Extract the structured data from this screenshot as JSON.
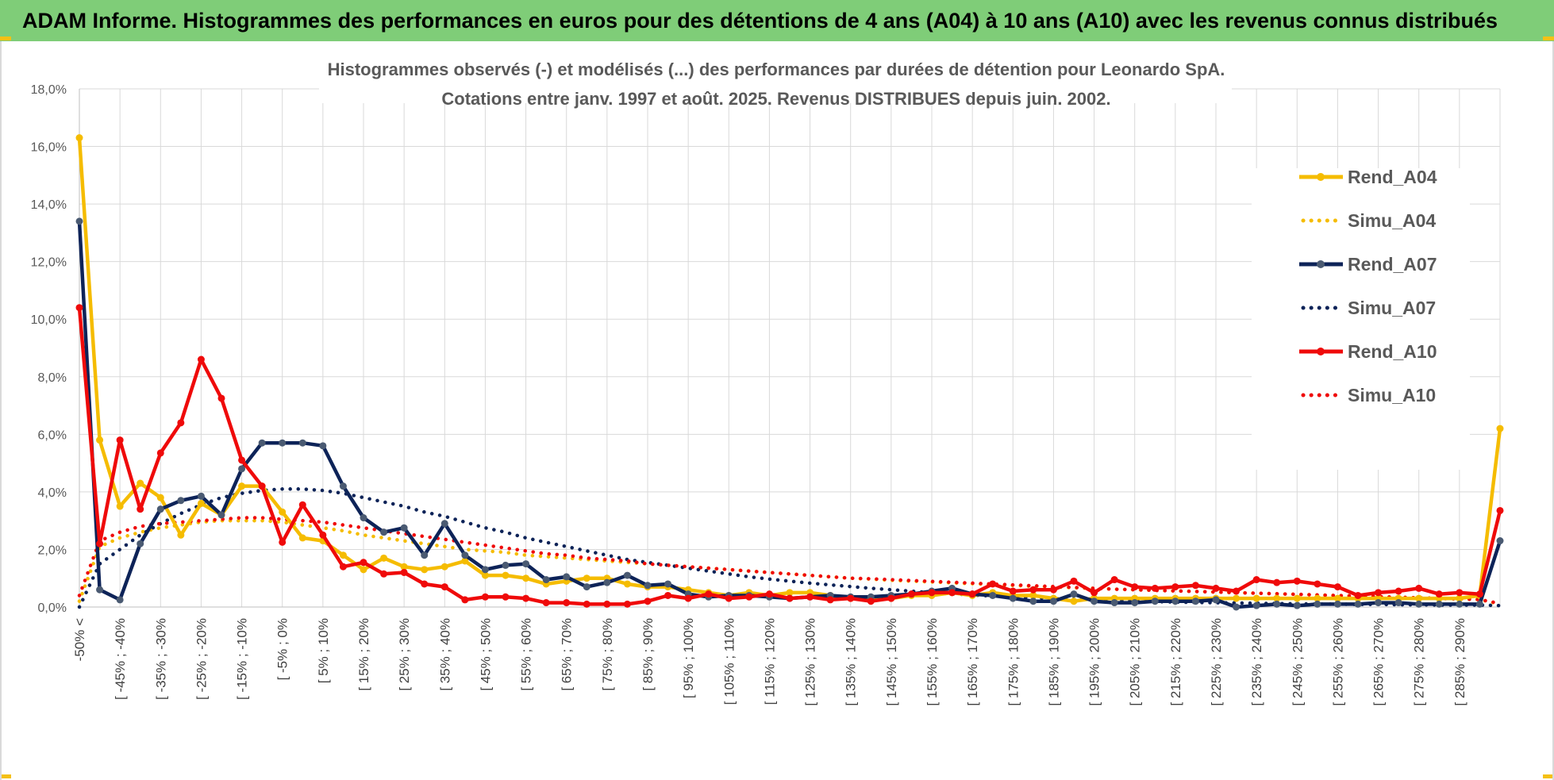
{
  "banner": {
    "title": "ADAM Informe. Histogrammes des performances en euros pour des détentions de 4 ans (A04) à 10 ans (A10) avec les revenus connus distribués"
  },
  "colors": {
    "banner_bg": "#7fcd78",
    "accent": "#f4c015",
    "gridline": "#d9d9d9"
  },
  "chart_data": {
    "type": "line",
    "title_line1": "Histogrammes observés (-) et modélisés (...) des performances par durées de détention pour Leonardo SpA.",
    "title_line2": "Cotations entre janv. 1997 et août. 2025. Revenus DISTRIBUES depuis juin. 2002.",
    "xlabel": "",
    "ylabel": "",
    "ylim": [
      0,
      18
    ],
    "y_ticks": [
      "0,0%",
      "2,0%",
      "4,0%",
      "6,0%",
      "8,0%",
      "10,0%",
      "12,0%",
      "14,0%",
      "16,0%",
      "18,0%"
    ],
    "y_tick_values": [
      0,
      2,
      4,
      6,
      8,
      10,
      12,
      14,
      16,
      18
    ],
    "grid": true,
    "legend_position": "right",
    "categories": [
      "-50% <",
      "[ -50% ; -45%",
      "[ -45% ; -40%",
      "[ -40% ; -35%",
      "[ -35% ; -30%",
      "[ -30% ; -25%",
      "[ -25% ; -20%",
      "[ -20% ; -15%",
      "[ -15% ; -10%",
      "[ -10% ; -5%",
      "[ -5% ; 0%",
      "[ 0% ; 5%",
      "[ 5% ; 10%",
      "[ 10% ; 15%",
      "[ 15% ; 20%",
      "[ 20% ; 25%",
      "[ 25% ; 30%",
      "[ 30% ; 35%",
      "[ 35% ; 40%",
      "[ 40% ; 45%",
      "[ 45% ; 50%",
      "[ 50% ; 55%",
      "[ 55% ; 60%",
      "[ 60% ; 65%",
      "[ 65% ; 70%",
      "[ 70% ; 75%",
      "[ 75% ; 80%",
      "[ 80% ; 85%",
      "[ 85% ; 90%",
      "[ 90% ; 95%",
      "[ 95% ; 100%",
      "[ 100% ; 105%",
      "[ 105% ; 110%",
      "[ 110% ; 115%",
      "[ 115% ; 120%",
      "[ 120% ; 125%",
      "[ 125% ; 130%",
      "[ 130% ; 135%",
      "[ 135% ; 140%",
      "[ 140% ; 145%",
      "[ 145% ; 150%",
      "[ 150% ; 155%",
      "[ 155% ; 160%",
      "[ 160% ; 165%",
      "[ 165% ; 170%",
      "[ 170% ; 175%",
      "[ 175% ; 180%",
      "[ 180% ; 185%",
      "[ 185% ; 190%",
      "[ 190% ; 195%",
      "[ 195% ; 200%",
      "[ 200% ; 205%",
      "[ 205% ; 210%",
      "[ 210% ; 215%",
      "[ 215% ; 220%",
      "[ 220% ; 225%",
      "[ 225% ; 230%",
      "[ 230% ; 235%",
      "[ 235% ; 240%",
      "[ 240% ; 245%",
      "[ 245% ; 250%",
      "[ 250% ; 255%",
      "[ 255% ; 260%",
      "[ 260% ; 265%",
      "[ 265% ; 270%",
      "[ 270% ; 275%",
      "[ 275% ; 280%",
      "[ 280% ; 285%",
      "[ 285% ; 290%",
      "[ 290% ; 295%",
      "[ 295% ; 300%"
    ],
    "x_labels": [
      "-50% <",
      "[ -45% ; -40%",
      "[ -35% ; -30%",
      "[ -25% ; -20%",
      "[ -15% ; -10%",
      "[ -5% ; 0%",
      "[ 5% ; 10%",
      "[ 15% ; 20%",
      "[ 25% ; 30%",
      "[ 35% ; 40%",
      "[ 45% ; 50%",
      "[ 55% ; 60%",
      "[ 65% ; 70%",
      "[ 75% ; 80%",
      "[ 85% ; 90%",
      "[ 95% ; 100%",
      "[ 105% ; 110%",
      "[ 115% ; 120%",
      "[ 125% ; 130%",
      "[ 135% ; 140%",
      "[ 145% ; 150%",
      "[ 155% ; 160%",
      "[ 165% ; 170%",
      "[ 175% ; 180%",
      "[ 185% ; 190%",
      "[ 195% ; 200%",
      "[ 205% ; 210%",
      "[ 215% ; 220%",
      "[ 225% ; 230%",
      "[ 235% ; 240%",
      "[ 245% ; 250%",
      "[ 255% ; 260%",
      "[ 265% ; 270%",
      "[ 275% ; 280%",
      "[ 285% ; 290%"
    ],
    "series": [
      {
        "name": "Rend_A04",
        "color": "#f5bc00",
        "style": "solid",
        "values": [
          16.3,
          5.8,
          3.5,
          4.3,
          3.8,
          2.5,
          3.6,
          3.2,
          4.2,
          4.2,
          3.3,
          2.4,
          2.3,
          1.8,
          1.3,
          1.7,
          1.4,
          1.3,
          1.4,
          1.6,
          1.1,
          1.1,
          1.0,
          0.8,
          0.9,
          1.0,
          1.0,
          0.8,
          0.7,
          0.7,
          0.6,
          0.5,
          0.4,
          0.5,
          0.4,
          0.5,
          0.5,
          0.4,
          0.3,
          0.3,
          0.3,
          0.4,
          0.4,
          0.5,
          0.4,
          0.5,
          0.4,
          0.4,
          0.3,
          0.2,
          0.3,
          0.3,
          0.3,
          0.3,
          0.3,
          0.3,
          0.3,
          0.3,
          0.3,
          0.3,
          0.3,
          0.3,
          0.3,
          0.3,
          0.3,
          0.3,
          0.3,
          0.3,
          0.3,
          0.4,
          6.2
        ]
      },
      {
        "name": "Simu_A04",
        "color": "#f5bc00",
        "style": "dotted",
        "values": [
          0.2,
          2.1,
          2.4,
          2.6,
          2.75,
          2.85,
          2.95,
          3.0,
          3.0,
          3.0,
          2.95,
          2.85,
          2.75,
          2.65,
          2.5,
          2.4,
          2.3,
          2.2,
          2.1,
          2.0,
          1.95,
          1.9,
          1.8,
          1.75,
          1.7,
          1.65,
          1.6,
          1.55,
          1.5,
          1.45,
          1.4,
          1.35,
          1.3,
          1.25,
          1.2,
          1.15,
          1.1,
          1.05,
          1.0,
          0.97,
          0.93,
          0.9,
          0.87,
          0.84,
          0.81,
          0.78,
          0.75,
          0.72,
          0.7,
          0.67,
          0.65,
          0.62,
          0.6,
          0.58,
          0.56,
          0.54,
          0.52,
          0.5,
          0.48,
          0.46,
          0.44,
          0.42,
          0.4,
          0.38,
          0.36,
          0.34,
          0.32,
          0.3,
          0.28,
          0.26,
          0.1
        ]
      },
      {
        "name": "Rend_A07",
        "color": "#0d2358",
        "style": "solid",
        "values": [
          13.4,
          0.6,
          0.25,
          2.2,
          3.4,
          3.7,
          3.85,
          3.2,
          4.8,
          5.7,
          5.7,
          5.7,
          5.6,
          4.2,
          3.1,
          2.6,
          2.75,
          1.8,
          2.9,
          1.8,
          1.3,
          1.45,
          1.5,
          0.95,
          1.05,
          0.7,
          0.85,
          1.1,
          0.75,
          0.8,
          0.45,
          0.35,
          0.4,
          0.4,
          0.35,
          0.3,
          0.35,
          0.4,
          0.35,
          0.35,
          0.4,
          0.45,
          0.55,
          0.65,
          0.45,
          0.4,
          0.3,
          0.2,
          0.2,
          0.45,
          0.2,
          0.15,
          0.15,
          0.2,
          0.2,
          0.2,
          0.25,
          0.0,
          0.05,
          0.1,
          0.05,
          0.1,
          0.1,
          0.1,
          0.15,
          0.15,
          0.1,
          0.1,
          0.1,
          0.1,
          2.3
        ]
      },
      {
        "name": "Simu_A07",
        "color": "#0d2358",
        "style": "dotted",
        "values": [
          0.0,
          1.5,
          2.0,
          2.5,
          2.9,
          3.25,
          3.55,
          3.8,
          3.95,
          4.05,
          4.1,
          4.1,
          4.05,
          3.95,
          3.8,
          3.65,
          3.5,
          3.3,
          3.15,
          2.95,
          2.75,
          2.6,
          2.4,
          2.25,
          2.1,
          1.95,
          1.8,
          1.65,
          1.55,
          1.45,
          1.35,
          1.25,
          1.15,
          1.05,
          0.97,
          0.9,
          0.83,
          0.77,
          0.71,
          0.65,
          0.6,
          0.55,
          0.5,
          0.46,
          0.42,
          0.38,
          0.35,
          0.32,
          0.29,
          0.27,
          0.25,
          0.23,
          0.21,
          0.19,
          0.17,
          0.16,
          0.15,
          0.14,
          0.13,
          0.12,
          0.11,
          0.1,
          0.1,
          0.09,
          0.09,
          0.08,
          0.08,
          0.07,
          0.07,
          0.07,
          0.05
        ]
      },
      {
        "name": "Rend_A10",
        "color": "#ef0a0a",
        "style": "solid",
        "values": [
          10.4,
          2.2,
          5.8,
          3.4,
          5.35,
          6.4,
          8.6,
          7.25,
          5.1,
          4.2,
          2.25,
          3.55,
          2.5,
          1.4,
          1.55,
          1.15,
          1.2,
          0.8,
          0.7,
          0.25,
          0.35,
          0.35,
          0.3,
          0.15,
          0.15,
          0.1,
          0.1,
          0.1,
          0.2,
          0.4,
          0.3,
          0.45,
          0.3,
          0.35,
          0.45,
          0.3,
          0.35,
          0.25,
          0.3,
          0.2,
          0.3,
          0.45,
          0.5,
          0.5,
          0.45,
          0.8,
          0.55,
          0.6,
          0.6,
          0.9,
          0.5,
          0.95,
          0.7,
          0.65,
          0.7,
          0.75,
          0.65,
          0.55,
          0.95,
          0.85,
          0.9,
          0.8,
          0.7,
          0.4,
          0.5,
          0.55,
          0.65,
          0.45,
          0.5,
          0.45,
          3.35
        ]
      },
      {
        "name": "Simu_A10",
        "color": "#ef0a0a",
        "style": "dotted",
        "values": [
          0.4,
          2.3,
          2.6,
          2.8,
          2.9,
          2.95,
          3.0,
          3.05,
          3.1,
          3.1,
          3.05,
          3.0,
          2.95,
          2.85,
          2.75,
          2.65,
          2.55,
          2.45,
          2.35,
          2.25,
          2.15,
          2.05,
          1.95,
          1.85,
          1.8,
          1.7,
          1.65,
          1.6,
          1.5,
          1.45,
          1.4,
          1.35,
          1.3,
          1.25,
          1.2,
          1.15,
          1.1,
          1.05,
          1.0,
          0.98,
          0.95,
          0.92,
          0.89,
          0.86,
          0.83,
          0.8,
          0.77,
          0.74,
          0.71,
          0.68,
          0.65,
          0.62,
          0.6,
          0.58,
          0.56,
          0.54,
          0.52,
          0.5,
          0.48,
          0.46,
          0.44,
          0.42,
          0.4,
          0.38,
          0.36,
          0.34,
          0.32,
          0.3,
          0.28,
          0.26,
          0.12
        ]
      }
    ]
  }
}
